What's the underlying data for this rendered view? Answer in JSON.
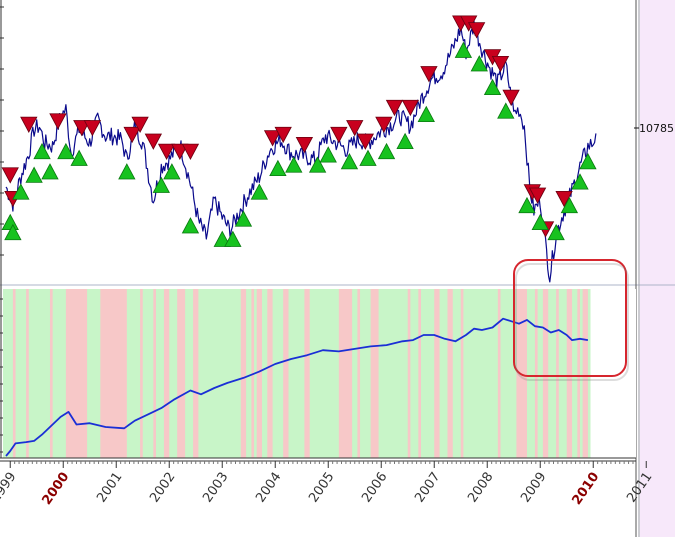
{
  "chart_data": {
    "type": "line",
    "x_axis": {
      "ticks": [
        "1999",
        "2000",
        "2001",
        "2002",
        "2003",
        "2004",
        "2005",
        "2006",
        "2007",
        "2008",
        "2009",
        "2010",
        "2011"
      ],
      "highlighted": [
        "2000",
        "2010"
      ],
      "range": [
        1998.9,
        2011.0
      ]
    },
    "price_panel": {
      "last_value_label": "10785.1",
      "y_range": [
        6500,
        14500
      ],
      "series": [
        {
          "t": 1998.92,
          "v": 9200
        },
        {
          "t": 1999.05,
          "v": 8700
        },
        {
          "t": 1999.2,
          "v": 9500
        },
        {
          "t": 1999.35,
          "v": 10200
        },
        {
          "t": 1999.45,
          "v": 10900
        },
        {
          "t": 1999.55,
          "v": 11000
        },
        {
          "t": 1999.65,
          "v": 10500
        },
        {
          "t": 1999.8,
          "v": 10400
        },
        {
          "t": 1999.95,
          "v": 11300
        },
        {
          "t": 2000.05,
          "v": 11500
        },
        {
          "t": 2000.15,
          "v": 10200
        },
        {
          "t": 2000.3,
          "v": 10900
        },
        {
          "t": 2000.5,
          "v": 10500
        },
        {
          "t": 2000.65,
          "v": 11200
        },
        {
          "t": 2000.8,
          "v": 10700
        },
        {
          "t": 2000.95,
          "v": 10700
        },
        {
          "t": 2001.1,
          "v": 10600
        },
        {
          "t": 2001.2,
          "v": 10000
        },
        {
          "t": 2001.35,
          "v": 11000
        },
        {
          "t": 2001.5,
          "v": 10500
        },
        {
          "t": 2001.7,
          "v": 8800
        },
        {
          "t": 2001.85,
          "v": 9800
        },
        {
          "t": 2002.0,
          "v": 10000
        },
        {
          "t": 2002.2,
          "v": 10500
        },
        {
          "t": 2002.4,
          "v": 9300
        },
        {
          "t": 2002.55,
          "v": 8200
        },
        {
          "t": 2002.7,
          "v": 7700
        },
        {
          "t": 2002.85,
          "v": 8800
        },
        {
          "t": 2003.0,
          "v": 8300
        },
        {
          "t": 2003.15,
          "v": 7900
        },
        {
          "t": 2003.3,
          "v": 8400
        },
        {
          "t": 2003.5,
          "v": 9000
        },
        {
          "t": 2003.7,
          "v": 9500
        },
        {
          "t": 2003.9,
          "v": 10300
        },
        {
          "t": 2004.1,
          "v": 10600
        },
        {
          "t": 2004.3,
          "v": 10200
        },
        {
          "t": 2004.55,
          "v": 10100
        },
        {
          "t": 2004.75,
          "v": 10000
        },
        {
          "t": 2004.95,
          "v": 10700
        },
        {
          "t": 2005.15,
          "v": 10500
        },
        {
          "t": 2005.35,
          "v": 10300
        },
        {
          "t": 2005.55,
          "v": 10600
        },
        {
          "t": 2005.75,
          "v": 10500
        },
        {
          "t": 2005.95,
          "v": 10800
        },
        {
          "t": 2006.15,
          "v": 11000
        },
        {
          "t": 2006.35,
          "v": 11300
        },
        {
          "t": 2006.55,
          "v": 11000
        },
        {
          "t": 2006.75,
          "v": 11800
        },
        {
          "t": 2006.95,
          "v": 12400
        },
        {
          "t": 2007.15,
          "v": 12600
        },
        {
          "t": 2007.35,
          "v": 13300
        },
        {
          "t": 2007.5,
          "v": 13900
        },
        {
          "t": 2007.6,
          "v": 13200
        },
        {
          "t": 2007.75,
          "v": 14000
        },
        {
          "t": 2007.9,
          "v": 13300
        },
        {
          "t": 2008.05,
          "v": 12700
        },
        {
          "t": 2008.2,
          "v": 12300
        },
        {
          "t": 2008.35,
          "v": 12800
        },
        {
          "t": 2008.5,
          "v": 11400
        },
        {
          "t": 2008.6,
          "v": 11500
        },
        {
          "t": 2008.7,
          "v": 11000
        },
        {
          "t": 2008.8,
          "v": 9200
        },
        {
          "t": 2008.88,
          "v": 8500
        },
        {
          "t": 2009.0,
          "v": 8800
        },
        {
          "t": 2009.1,
          "v": 7500
        },
        {
          "t": 2009.18,
          "v": 6550
        },
        {
          "t": 2009.3,
          "v": 7800
        },
        {
          "t": 2009.45,
          "v": 8500
        },
        {
          "t": 2009.6,
          "v": 9100
        },
        {
          "t": 2009.75,
          "v": 9800
        },
        {
          "t": 2009.9,
          "v": 10400
        },
        {
          "t": 2010.0,
          "v": 10500
        },
        {
          "t": 2010.05,
          "v": 10785
        }
      ],
      "sell_signals": [
        {
          "t": 1999.0,
          "v": 9500
        },
        {
          "t": 1999.05,
          "v": 8800
        },
        {
          "t": 1999.35,
          "v": 11000
        },
        {
          "t": 1999.9,
          "v": 11100
        },
        {
          "t": 2000.35,
          "v": 10900
        },
        {
          "t": 2000.55,
          "v": 10900
        },
        {
          "t": 2001.3,
          "v": 10700
        },
        {
          "t": 2001.45,
          "v": 11000
        },
        {
          "t": 2001.7,
          "v": 10500
        },
        {
          "t": 2001.95,
          "v": 10200
        },
        {
          "t": 2002.2,
          "v": 10200
        },
        {
          "t": 2002.4,
          "v": 10200
        },
        {
          "t": 2003.95,
          "v": 10600
        },
        {
          "t": 2004.15,
          "v": 10700
        },
        {
          "t": 2004.55,
          "v": 10400
        },
        {
          "t": 2005.2,
          "v": 10700
        },
        {
          "t": 2005.5,
          "v": 10900
        },
        {
          "t": 2005.7,
          "v": 10500
        },
        {
          "t": 2006.05,
          "v": 11000
        },
        {
          "t": 2006.25,
          "v": 11500
        },
        {
          "t": 2006.55,
          "v": 11500
        },
        {
          "t": 2006.9,
          "v": 12500
        },
        {
          "t": 2007.5,
          "v": 14000
        },
        {
          "t": 2007.65,
          "v": 14000
        },
        {
          "t": 2007.8,
          "v": 13800
        },
        {
          "t": 2008.1,
          "v": 13000
        },
        {
          "t": 2008.25,
          "v": 12800
        },
        {
          "t": 2008.45,
          "v": 11800
        },
        {
          "t": 2008.85,
          "v": 9000
        },
        {
          "t": 2008.95,
          "v": 8900
        },
        {
          "t": 2009.1,
          "v": 7900
        },
        {
          "t": 2009.45,
          "v": 8800
        }
      ],
      "buy_signals": [
        {
          "t": 1999.0,
          "v": 8200
        },
        {
          "t": 1999.05,
          "v": 7900
        },
        {
          "t": 1999.2,
          "v": 9100
        },
        {
          "t": 1999.45,
          "v": 9600
        },
        {
          "t": 1999.6,
          "v": 10300
        },
        {
          "t": 1999.75,
          "v": 9700
        },
        {
          "t": 2000.05,
          "v": 10300
        },
        {
          "t": 2000.3,
          "v": 10100
        },
        {
          "t": 2001.2,
          "v": 9700
        },
        {
          "t": 2001.85,
          "v": 9300
        },
        {
          "t": 2002.05,
          "v": 9700
        },
        {
          "t": 2002.4,
          "v": 8100
        },
        {
          "t": 2003.0,
          "v": 7700
        },
        {
          "t": 2003.2,
          "v": 7700
        },
        {
          "t": 2003.4,
          "v": 8300
        },
        {
          "t": 2003.7,
          "v": 9100
        },
        {
          "t": 2004.05,
          "v": 9800
        },
        {
          "t": 2004.35,
          "v": 9900
        },
        {
          "t": 2004.8,
          "v": 9900
        },
        {
          "t": 2005.0,
          "v": 10200
        },
        {
          "t": 2005.4,
          "v": 10000
        },
        {
          "t": 2005.75,
          "v": 10100
        },
        {
          "t": 2006.1,
          "v": 10300
        },
        {
          "t": 2006.45,
          "v": 10600
        },
        {
          "t": 2006.85,
          "v": 11400
        },
        {
          "t": 2007.55,
          "v": 13300
        },
        {
          "t": 2007.85,
          "v": 12900
        },
        {
          "t": 2008.1,
          "v": 12200
        },
        {
          "t": 2008.35,
          "v": 11500
        },
        {
          "t": 2008.75,
          "v": 8700
        },
        {
          "t": 2009.0,
          "v": 8200
        },
        {
          "t": 2009.3,
          "v": 7900
        },
        {
          "t": 2009.55,
          "v": 8700
        },
        {
          "t": 2009.75,
          "v": 9400
        },
        {
          "t": 2009.9,
          "v": 10000
        }
      ]
    },
    "equity_panel": {
      "y_range": [
        0,
        100
      ],
      "series": [
        {
          "t": 1998.92,
          "v": 0
        },
        {
          "t": 1999.0,
          "v": 4
        },
        {
          "t": 1999.1,
          "v": 10
        },
        {
          "t": 1999.3,
          "v": 11
        },
        {
          "t": 1999.45,
          "v": 12
        },
        {
          "t": 1999.6,
          "v": 17
        },
        {
          "t": 1999.8,
          "v": 25
        },
        {
          "t": 1999.95,
          "v": 31
        },
        {
          "t": 2000.1,
          "v": 35
        },
        {
          "t": 2000.25,
          "v": 25
        },
        {
          "t": 2000.5,
          "v": 26
        },
        {
          "t": 2000.8,
          "v": 23
        },
        {
          "t": 2001.15,
          "v": 22
        },
        {
          "t": 2001.35,
          "v": 28
        },
        {
          "t": 2001.6,
          "v": 33
        },
        {
          "t": 2001.85,
          "v": 38
        },
        {
          "t": 2002.1,
          "v": 45
        },
        {
          "t": 2002.4,
          "v": 52
        },
        {
          "t": 2002.6,
          "v": 49
        },
        {
          "t": 2002.85,
          "v": 54
        },
        {
          "t": 2003.1,
          "v": 58
        },
        {
          "t": 2003.4,
          "v": 62
        },
        {
          "t": 2003.7,
          "v": 67
        },
        {
          "t": 2004.0,
          "v": 73
        },
        {
          "t": 2004.3,
          "v": 77
        },
        {
          "t": 2004.6,
          "v": 80
        },
        {
          "t": 2004.9,
          "v": 84
        },
        {
          "t": 2005.2,
          "v": 83
        },
        {
          "t": 2005.5,
          "v": 85
        },
        {
          "t": 2005.8,
          "v": 87
        },
        {
          "t": 2006.1,
          "v": 88
        },
        {
          "t": 2006.4,
          "v": 91
        },
        {
          "t": 2006.6,
          "v": 92
        },
        {
          "t": 2006.8,
          "v": 96
        },
        {
          "t": 2007.0,
          "v": 96
        },
        {
          "t": 2007.2,
          "v": 93
        },
        {
          "t": 2007.4,
          "v": 91
        },
        {
          "t": 2007.6,
          "v": 96
        },
        {
          "t": 2007.75,
          "v": 101
        },
        {
          "t": 2007.9,
          "v": 100
        },
        {
          "t": 2008.1,
          "v": 102
        },
        {
          "t": 2008.3,
          "v": 109
        },
        {
          "t": 2008.45,
          "v": 107
        },
        {
          "t": 2008.6,
          "v": 105
        },
        {
          "t": 2008.75,
          "v": 108
        },
        {
          "t": 2008.9,
          "v": 103
        },
        {
          "t": 2009.05,
          "v": 102
        },
        {
          "t": 2009.2,
          "v": 98
        },
        {
          "t": 2009.35,
          "v": 100
        },
        {
          "t": 2009.5,
          "v": 96
        },
        {
          "t": 2009.6,
          "v": 92
        },
        {
          "t": 2009.75,
          "v": 93
        },
        {
          "t": 2009.9,
          "v": 92
        }
      ],
      "loss_periods": [
        [
          1999.05,
          1999.1
        ],
        [
          1999.3,
          1999.35
        ],
        [
          1999.75,
          1999.8
        ],
        [
          2000.05,
          2000.45
        ],
        [
          2000.7,
          2001.2
        ],
        [
          2001.45,
          2001.5
        ],
        [
          2001.7,
          2001.75
        ],
        [
          2001.9,
          2002.0
        ],
        [
          2002.15,
          2002.3
        ],
        [
          2002.45,
          2002.55
        ],
        [
          2003.35,
          2003.45
        ],
        [
          2003.55,
          2003.6
        ],
        [
          2003.65,
          2003.75
        ],
        [
          2003.85,
          2003.95
        ],
        [
          2004.15,
          2004.25
        ],
        [
          2004.55,
          2004.65
        ],
        [
          2005.2,
          2005.45
        ],
        [
          2005.55,
          2005.6
        ],
        [
          2005.8,
          2005.95
        ],
        [
          2006.5,
          2006.55
        ],
        [
          2006.7,
          2006.75
        ],
        [
          2007.0,
          2007.1
        ],
        [
          2007.25,
          2007.35
        ],
        [
          2007.5,
          2007.55
        ],
        [
          2008.2,
          2008.25
        ],
        [
          2008.55,
          2008.75
        ],
        [
          2008.9,
          2008.95
        ],
        [
          2009.05,
          2009.15
        ],
        [
          2009.3,
          2009.35
        ],
        [
          2009.5,
          2009.6
        ],
        [
          2009.7,
          2009.75
        ],
        [
          2009.8,
          2009.9
        ]
      ],
      "active_until": 2009.95
    },
    "colors": {
      "price_line": "#0a0a8c",
      "equity_line": "#1a2fd6",
      "sell_marker": "#c8001e",
      "buy_marker": "#17c21f",
      "profit_band": "#c8f5c8",
      "loss_band": "#f7c8c8",
      "right_region": "#f7e8fa",
      "highlight_box": "#d6262e",
      "highlight_year": "#8b0000"
    }
  }
}
